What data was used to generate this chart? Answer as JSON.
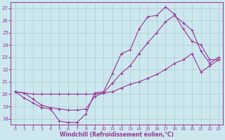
{
  "xlabel": "Windchill (Refroidissement éolien,°C)",
  "background_color": "#cce8ee",
  "grid_color": "#aacccc",
  "line_color": "#993399",
  "xlim": [
    -0.5,
    23.5
  ],
  "ylim": [
    17.5,
    27.5
  ],
  "yticks": [
    18,
    19,
    20,
    21,
    22,
    23,
    24,
    25,
    26,
    27
  ],
  "xticks": [
    0,
    1,
    2,
    3,
    4,
    5,
    6,
    7,
    8,
    9,
    10,
    11,
    12,
    13,
    14,
    15,
    16,
    17,
    18,
    19,
    20,
    21,
    22,
    23
  ],
  "line1_x": [
    0,
    1,
    2,
    3,
    4,
    5,
    6,
    7,
    8,
    9,
    10,
    11,
    12,
    13,
    14,
    15,
    16,
    17,
    18,
    19,
    20,
    21,
    22,
    23
  ],
  "line1_y": [
    20.2,
    19.7,
    19.3,
    18.9,
    18.8,
    17.8,
    17.7,
    17.7,
    18.4,
    20.1,
    20.2,
    21.7,
    23.3,
    23.6,
    25.3,
    26.3,
    26.4,
    27.1,
    26.5,
    25.3,
    24.3,
    24.0,
    22.8,
    22.8
  ],
  "line2_x": [
    0,
    1,
    2,
    3,
    4,
    5,
    6,
    7,
    8,
    9,
    10,
    11,
    12,
    13,
    14,
    15,
    16,
    17,
    18,
    19,
    20,
    21,
    22,
    23
  ],
  "line2_y": [
    20.2,
    20.1,
    19.6,
    19.1,
    18.9,
    18.8,
    18.7,
    18.7,
    18.8,
    19.8,
    20.1,
    20.9,
    21.7,
    22.3,
    23.3,
    24.2,
    25.0,
    25.9,
    26.4,
    25.8,
    25.2,
    23.5,
    22.5,
    23.0
  ],
  "line3_x": [
    0,
    1,
    2,
    3,
    4,
    5,
    6,
    7,
    8,
    9,
    10,
    11,
    12,
    13,
    14,
    15,
    16,
    17,
    18,
    19,
    20,
    21,
    22,
    23
  ],
  "line3_y": [
    20.2,
    20.1,
    20.0,
    20.0,
    20.0,
    20.0,
    20.0,
    20.0,
    20.0,
    20.0,
    20.1,
    20.2,
    20.5,
    20.8,
    21.0,
    21.3,
    21.6,
    22.0,
    22.5,
    22.8,
    23.3,
    21.8,
    22.3,
    22.8
  ]
}
